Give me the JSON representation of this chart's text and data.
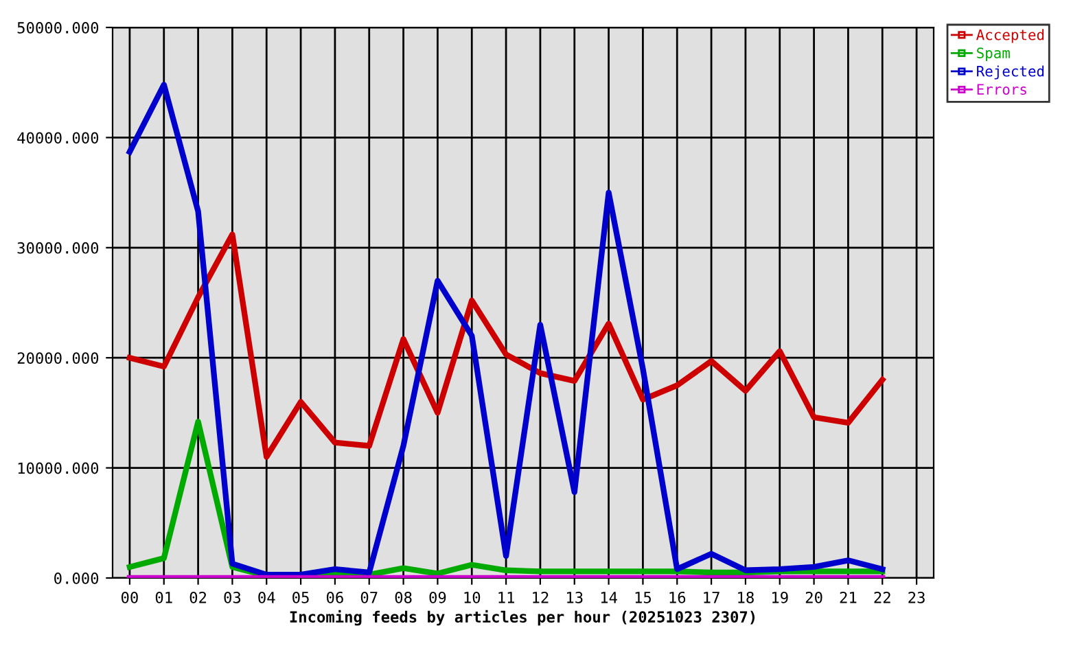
{
  "chart_data": {
    "type": "line",
    "xlabel": "Incoming feeds by articles per hour (20251023 2307)",
    "categories": [
      "00",
      "01",
      "02",
      "03",
      "04",
      "05",
      "06",
      "07",
      "08",
      "09",
      "10",
      "11",
      "12",
      "13",
      "14",
      "15",
      "16",
      "17",
      "18",
      "19",
      "20",
      "21",
      "22",
      "23"
    ],
    "series": [
      {
        "name": "Accepted",
        "color": "#cc0000",
        "values": [
          20000,
          19200,
          25500,
          31200,
          11000,
          16000,
          12300,
          12000,
          21700,
          15000,
          25200,
          20300,
          18600,
          17900,
          23100,
          16200,
          17500,
          19700,
          17000,
          20600,
          14600,
          14100,
          18000,
          null
        ]
      },
      {
        "name": "Spam",
        "color": "#00aa00",
        "values": [
          1000,
          1800,
          14200,
          1000,
          200,
          200,
          400,
          300,
          900,
          400,
          1200,
          700,
          600,
          600,
          600,
          600,
          600,
          500,
          500,
          600,
          600,
          600,
          600,
          null
        ]
      },
      {
        "name": "Rejected",
        "color": "#0000cc",
        "values": [
          38700,
          44800,
          33300,
          1300,
          300,
          300,
          800,
          500,
          12000,
          27000,
          22000,
          2000,
          23000,
          7800,
          35000,
          19000,
          800,
          2200,
          700,
          800,
          1000,
          1600,
          800,
          null
        ]
      },
      {
        "name": "Errors",
        "color": "#cc00cc",
        "values": [
          0,
          0,
          0,
          0,
          0,
          0,
          0,
          0,
          0,
          0,
          0,
          0,
          0,
          0,
          0,
          0,
          0,
          0,
          0,
          0,
          0,
          0,
          0,
          null
        ]
      }
    ],
    "ylim": [
      0,
      50000
    ],
    "yticks": [
      {
        "value": 0,
        "label": "0.000"
      },
      {
        "value": 10000,
        "label": "10000.000"
      },
      {
        "value": 20000,
        "label": "20000.000"
      },
      {
        "value": 30000,
        "label": "30000.000"
      },
      {
        "value": 40000,
        "label": "40000.000"
      },
      {
        "value": 50000,
        "label": "50000.000"
      }
    ],
    "grid": true,
    "legend": "top right",
    "line_style": "solid"
  }
}
